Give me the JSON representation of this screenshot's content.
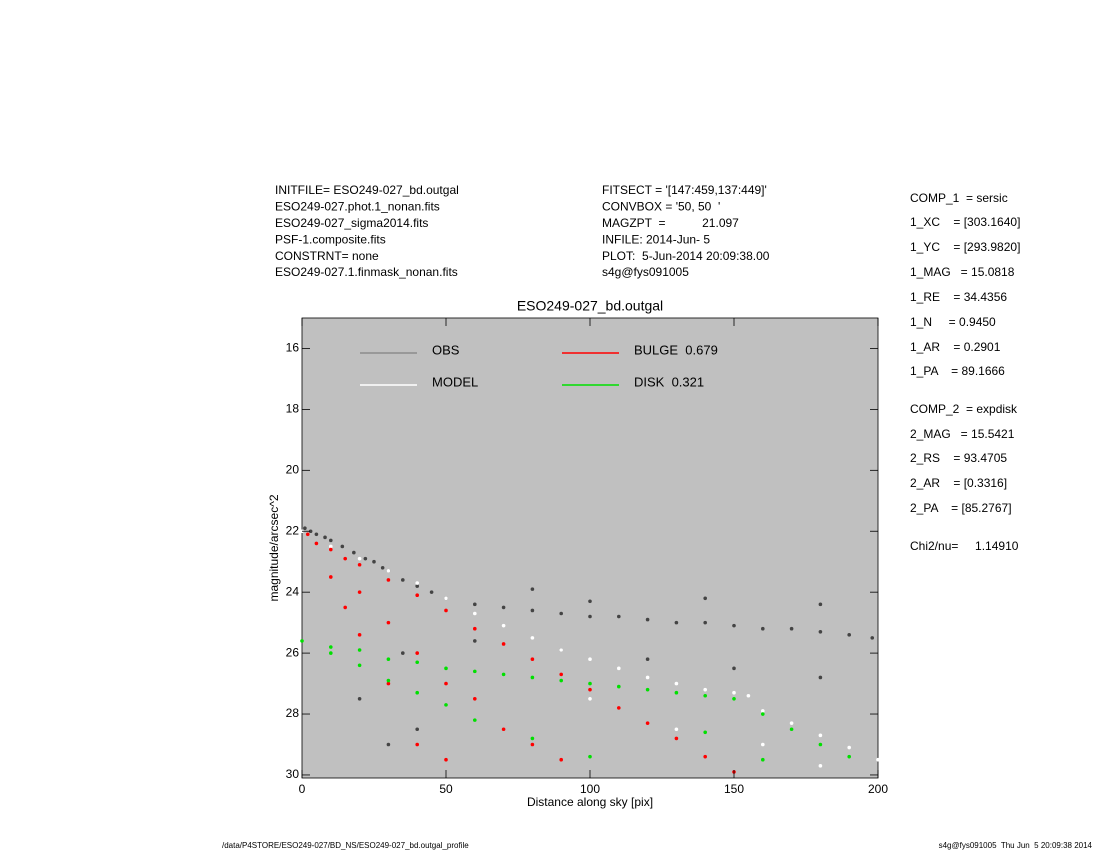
{
  "chart_data": {
    "type": "scatter",
    "title": "ESO249-027_bd.outgal",
    "xlabel": "Distance along sky [pix]",
    "ylabel": "magnitude/arcsec^2",
    "xlim": [
      0,
      200
    ],
    "xticks": [
      0,
      50,
      100,
      150,
      200
    ],
    "ylim": [
      30.1,
      15
    ],
    "yticks": [
      16,
      18,
      20,
      22,
      24,
      26,
      28,
      30
    ],
    "background": "#c0c0c0",
    "series": [
      {
        "name": "OBS",
        "color": "#8c8c8c",
        "point_color": "#444444",
        "x": [
          1,
          3,
          5,
          8,
          10,
          14,
          18,
          22,
          25,
          28,
          30,
          35,
          40,
          45,
          50,
          60,
          70,
          80,
          90,
          100,
          110,
          120,
          130,
          140,
          150,
          160,
          170,
          180,
          190,
          198,
          20,
          30,
          40,
          35,
          60,
          90,
          120,
          150,
          180,
          100,
          80,
          140,
          180
        ],
        "y": [
          21.9,
          22.0,
          22.1,
          22.2,
          22.3,
          22.5,
          22.7,
          22.9,
          23.0,
          23.2,
          23.3,
          23.6,
          23.8,
          24.0,
          24.2,
          24.4,
          24.5,
          24.6,
          24.7,
          24.8,
          24.8,
          24.9,
          25.0,
          25.0,
          25.1,
          25.2,
          25.2,
          25.3,
          25.4,
          25.5,
          27.5,
          29.0,
          28.5,
          26.0,
          25.6,
          25.9,
          26.2,
          26.5,
          26.8,
          24.3,
          23.9,
          24.2,
          24.4
        ]
      },
      {
        "name": "MODEL",
        "color": "#ffffff",
        "point_color": "#ffffff",
        "x": [
          0,
          10,
          20,
          30,
          40,
          50,
          60,
          70,
          80,
          90,
          100,
          110,
          120,
          130,
          140,
          150,
          155,
          160,
          170,
          180,
          190,
          200,
          100,
          130,
          160,
          180
        ],
        "y": [
          22.0,
          22.5,
          22.9,
          23.3,
          23.7,
          24.2,
          24.7,
          25.1,
          25.5,
          25.9,
          26.2,
          26.5,
          26.8,
          27.0,
          27.2,
          27.3,
          27.4,
          27.9,
          28.3,
          28.7,
          29.1,
          29.5,
          27.5,
          28.5,
          29.0,
          29.7
        ]
      },
      {
        "name": "BULGE  0.679",
        "color": "#ff0000",
        "point_color": "#ff0000",
        "x": [
          2,
          5,
          10,
          10,
          15,
          15,
          20,
          20,
          20,
          30,
          30,
          30,
          40,
          40,
          40,
          50,
          50,
          50,
          60,
          60,
          70,
          70,
          80,
          80,
          90,
          90,
          100,
          110,
          120,
          130,
          140,
          150
        ],
        "y": [
          22.1,
          22.4,
          22.6,
          23.5,
          22.9,
          24.5,
          23.1,
          24.0,
          25.4,
          23.6,
          25.0,
          27.0,
          24.1,
          26.0,
          29.0,
          24.6,
          27.0,
          29.5,
          25.2,
          27.5,
          25.7,
          28.5,
          26.2,
          29.0,
          26.7,
          29.5,
          27.2,
          27.8,
          28.3,
          28.8,
          29.4,
          29.9
        ]
      },
      {
        "name": "DISK  0.321",
        "color": "#00e000",
        "point_color": "#00e000",
        "x": [
          0,
          10,
          10,
          20,
          20,
          30,
          30,
          40,
          40,
          50,
          50,
          60,
          60,
          70,
          80,
          80,
          90,
          100,
          100,
          110,
          120,
          130,
          140,
          150,
          160,
          170,
          180,
          190,
          160,
          140
        ],
        "y": [
          25.6,
          25.8,
          26.0,
          25.9,
          26.4,
          26.2,
          26.9,
          26.3,
          27.3,
          26.5,
          27.7,
          26.6,
          28.2,
          26.7,
          26.8,
          28.8,
          26.9,
          27.0,
          29.4,
          27.1,
          27.2,
          27.3,
          27.4,
          27.5,
          28.0,
          28.5,
          29.0,
          29.4,
          29.5,
          28.6
        ]
      }
    ]
  },
  "header": {
    "left": [
      "INITFILE= ESO249-027_bd.outgal",
      "ESO249-027.phot.1_nonan.fits",
      "ESO249-027_sigma2014.fits",
      "PSF-1.composite.fits",
      "CONSTRNT= none",
      "ESO249-027.1.finmask_nonan.fits"
    ],
    "middle": [
      "FITSECT = '[147:459,137:449]'",
      "CONVBOX = '50, 50  '",
      "MAGZPT  =           21.097",
      "INFILE: 2014-Jun- 5",
      "PLOT:  5-Jun-2014 20:09:38.00",
      "s4g@fys091005"
    ]
  },
  "parameters": [
    "COMP_1  = sersic",
    "1_XC    = [303.1640]",
    "1_YC    = [293.9820]",
    "1_MAG   = 15.0818",
    "1_RE    = 34.4356",
    "1_N     = 0.9450",
    "1_AR    = 0.2901",
    "1_PA    = 89.1666",
    "COMP_2  = expdisk",
    "2_MAG   = 15.5421",
    "2_RS    = 93.4705",
    "2_AR    = [0.3316]",
    "2_PA    = [85.2767]",
    "Chi2/nu=     1.14910"
  ],
  "footer": {
    "left": "/data/P4STORE/ESO249-027/BD_NS/ESO249-027_bd.outgal_profile",
    "right": "s4g@fys091005  Thu Jun  5 20:09:38 2014"
  }
}
